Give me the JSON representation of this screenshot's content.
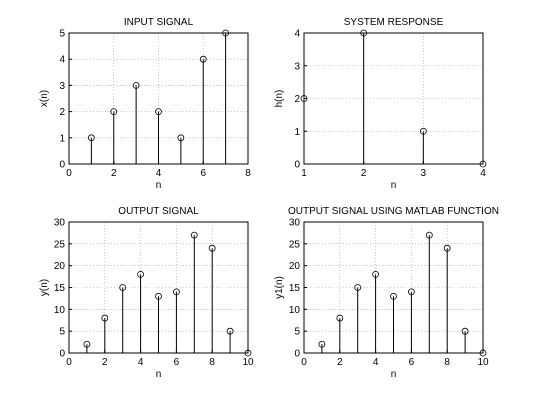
{
  "chart_data": [
    {
      "type": "stem",
      "title": "INPUT SIGNAL",
      "xlabel": "n",
      "ylabel": "x(n)",
      "xlim": [
        0,
        8
      ],
      "ylim": [
        0,
        5
      ],
      "xticks": [
        "0",
        "2",
        "4",
        "6",
        "8"
      ],
      "yticks": [
        "0",
        "1",
        "2",
        "3",
        "4",
        "5"
      ],
      "grid": true,
      "x": [
        1,
        2,
        3,
        4,
        5,
        6,
        7
      ],
      "values": [
        1,
        2,
        3,
        2,
        1,
        4,
        5
      ]
    },
    {
      "type": "stem",
      "title": "SYSTEM RESPONSE",
      "xlabel": "n",
      "ylabel": "h(n)",
      "xlim": [
        1,
        4
      ],
      "ylim": [
        0,
        4
      ],
      "xticks": [
        "1",
        "2",
        "3",
        "4"
      ],
      "yticks": [
        "0",
        "1",
        "2",
        "3",
        "4"
      ],
      "grid": true,
      "x": [
        1,
        2,
        3,
        4
      ],
      "values": [
        2,
        4,
        1,
        0
      ]
    },
    {
      "type": "stem",
      "title": "OUTPUT SIGNAL",
      "xlabel": "n",
      "ylabel": "y(n)",
      "xlim": [
        0,
        10
      ],
      "ylim": [
        0,
        30
      ],
      "xticks": [
        "0",
        "2",
        "4",
        "6",
        "8",
        "10"
      ],
      "yticks": [
        "0",
        "5",
        "10",
        "15",
        "20",
        "25",
        "30"
      ],
      "grid": true,
      "x": [
        1,
        2,
        3,
        4,
        5,
        6,
        7,
        8,
        9,
        10
      ],
      "values": [
        2,
        8,
        15,
        18,
        13,
        14,
        27,
        24,
        5,
        0
      ]
    },
    {
      "type": "stem",
      "title": "OUTPUT SIGNAL USING MATLAB FUNCTION",
      "xlabel": "n",
      "ylabel": "y1(n)",
      "xlim": [
        0,
        10
      ],
      "ylim": [
        0,
        30
      ],
      "xticks": [
        "0",
        "2",
        "4",
        "6",
        "8",
        "10"
      ],
      "yticks": [
        "0",
        "5",
        "10",
        "15",
        "20",
        "25",
        "30"
      ],
      "grid": true,
      "x": [
        1,
        2,
        3,
        4,
        5,
        6,
        7,
        8,
        9,
        10
      ],
      "values": [
        2,
        8,
        15,
        18,
        13,
        14,
        27,
        24,
        5,
        0
      ]
    }
  ]
}
